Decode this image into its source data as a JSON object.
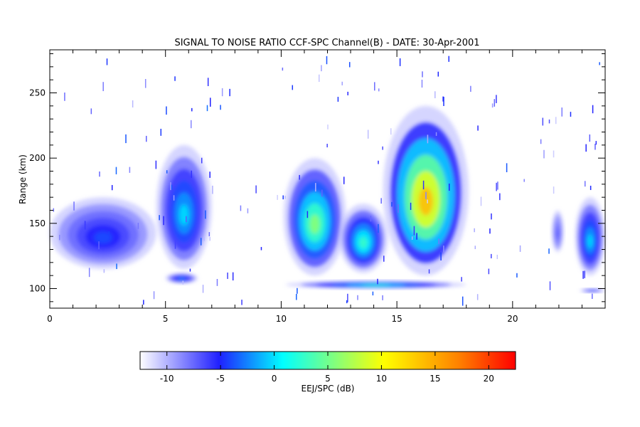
{
  "chart_data": {
    "type": "heatmap",
    "title": "SIGNAL TO NOISE RATIO CCF-SPC Channel(B) - DATE: 30-Apr-2001",
    "xlabel": "",
    "ylabel": "Range (km)",
    "xlim": [
      0,
      24
    ],
    "ylim": [
      85,
      283
    ],
    "x_ticks": [
      0,
      5,
      10,
      15,
      20
    ],
    "y_ticks": [
      100,
      150,
      200,
      250
    ],
    "colorbar": {
      "label": "EEJ/SPC (dB)",
      "range": [
        -12.5,
        22.5
      ],
      "ticks": [
        -10,
        -5,
        0,
        5,
        10,
        15,
        20
      ],
      "colormap": [
        "#ffffff",
        "#2020ff",
        "#00ffff",
        "#ffff00",
        "#ff8000",
        "#ff0000"
      ]
    },
    "echo_regions": [
      {
        "t_start": 0.0,
        "t_end": 4.6,
        "range_bottom": 115,
        "range_top": 170,
        "peak_snr_db": -4
      },
      {
        "t_start": 4.6,
        "t_end": 7.0,
        "range_bottom": 115,
        "range_top": 210,
        "peak_snr_db": 0
      },
      {
        "t_start": 5.0,
        "t_end": 6.4,
        "range_bottom": 104,
        "range_top": 112,
        "peak_snr_db": -2
      },
      {
        "t_start": 10.1,
        "t_end": 12.8,
        "range_bottom": 110,
        "range_top": 200,
        "peak_snr_db": 6
      },
      {
        "t_start": 12.5,
        "t_end": 14.6,
        "range_bottom": 112,
        "range_top": 165,
        "peak_snr_db": 3
      },
      {
        "t_start": 14.4,
        "t_end": 18.1,
        "range_bottom": 110,
        "range_top": 240,
        "peak_snr_db": 14
      },
      {
        "t_start": 10.2,
        "t_end": 18.0,
        "range_bottom": 100,
        "range_top": 106,
        "peak_snr_db": 2
      },
      {
        "t_start": 21.7,
        "t_end": 22.2,
        "range_bottom": 128,
        "range_top": 160,
        "peak_snr_db": -7
      },
      {
        "t_start": 22.7,
        "t_end": 24.0,
        "range_bottom": 110,
        "range_top": 170,
        "peak_snr_db": 0
      },
      {
        "t_start": 22.9,
        "t_end": 24.0,
        "range_bottom": 97,
        "range_top": 100,
        "peak_snr_db": -4
      }
    ]
  }
}
